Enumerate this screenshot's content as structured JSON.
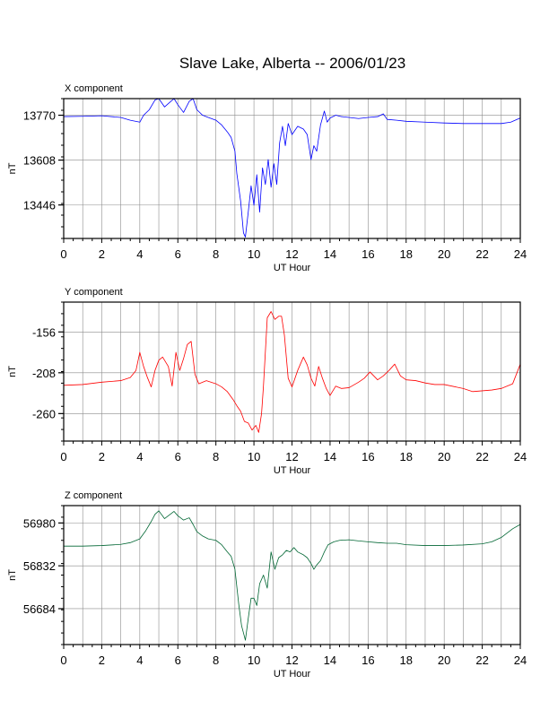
{
  "title": "Slave Lake, Alberta -- 2006/01/23",
  "chart_data": [
    {
      "type": "line",
      "title": "X component",
      "xlabel": "UT Hour",
      "ylabel": "nT",
      "xlim": [
        0,
        24
      ],
      "xticks": [
        0,
        2,
        4,
        6,
        8,
        10,
        12,
        14,
        16,
        18,
        20,
        22,
        24
      ],
      "ylim": [
        13325,
        13830
      ],
      "yticks": [
        13446,
        13608,
        13770
      ],
      "grid": true,
      "color": "#0000ff",
      "series": [
        {
          "x": [
            0,
            1,
            2,
            3,
            3.5,
            4,
            4.2,
            4.5,
            4.8,
            5,
            5.3,
            5.6,
            5.8,
            6,
            6.3,
            6.6,
            6.8,
            7,
            7.3,
            7.6,
            8,
            8.3,
            8.6,
            8.8,
            9,
            9.1,
            9.3,
            9.45,
            9.55,
            9.7,
            9.85,
            10,
            10.15,
            10.3,
            10.45,
            10.6,
            10.75,
            10.9,
            11.05,
            11.2,
            11.35,
            11.5,
            11.65,
            11.8,
            12,
            12.3,
            12.6,
            12.8,
            13,
            13.15,
            13.3,
            13.5,
            13.7,
            13.85,
            14,
            14.3,
            14.6,
            15,
            15.5,
            16,
            16.5,
            16.8,
            17,
            17.5,
            18,
            19,
            20,
            21,
            22,
            23,
            23.5,
            24
          ],
          "y": [
            13765,
            13766,
            13768,
            13762,
            13752,
            13745,
            13770,
            13790,
            13825,
            13830,
            13800,
            13818,
            13830,
            13808,
            13780,
            13820,
            13830,
            13790,
            13770,
            13762,
            13752,
            13735,
            13710,
            13690,
            13640,
            13560,
            13460,
            13345,
            13330,
            13420,
            13515,
            13445,
            13555,
            13420,
            13580,
            13520,
            13610,
            13510,
            13595,
            13520,
            13670,
            13730,
            13660,
            13740,
            13700,
            13730,
            13720,
            13700,
            13610,
            13660,
            13640,
            13735,
            13785,
            13745,
            13760,
            13770,
            13765,
            13762,
            13758,
            13762,
            13765,
            13775,
            13755,
            13752,
            13748,
            13745,
            13742,
            13740,
            13740,
            13740,
            13745,
            13760
          ]
        }
      ]
    },
    {
      "type": "line",
      "title": "Y component",
      "xlabel": "UT Hour",
      "ylabel": "nT",
      "xlim": [
        0,
        24
      ],
      "xticks": [
        0,
        2,
        4,
        6,
        8,
        10,
        12,
        14,
        16,
        18,
        20,
        22,
        24
      ],
      "ylim": [
        -295,
        -118
      ],
      "yticks": [
        -156,
        -208,
        -260
      ],
      "grid": true,
      "color": "#ff0000",
      "series": [
        {
          "x": [
            0,
            1,
            2,
            3,
            3.5,
            3.8,
            4,
            4.2,
            4.4,
            4.6,
            4.8,
            5,
            5.2,
            5.5,
            5.7,
            5.9,
            6.1,
            6.3,
            6.5,
            6.7,
            6.9,
            7.1,
            7.5,
            8,
            8.3,
            8.6,
            8.9,
            9.1,
            9.3,
            9.5,
            9.7,
            9.9,
            10.1,
            10.25,
            10.4,
            10.5,
            10.7,
            10.9,
            11.1,
            11.3,
            11.45,
            11.6,
            11.8,
            12,
            12.3,
            12.6,
            12.8,
            13,
            13.2,
            13.4,
            13.6,
            13.8,
            14,
            14.3,
            14.6,
            15,
            15.5,
            15.8,
            16.1,
            16.5,
            16.8,
            17.1,
            17.4,
            17.7,
            18,
            18.5,
            19,
            19.5,
            20,
            21,
            21.5,
            22,
            22.5,
            23,
            23.3,
            23.6,
            24
          ],
          "y": [
            -224,
            -223,
            -220,
            -218,
            -214,
            -205,
            -182,
            -200,
            -214,
            -226,
            -205,
            -192,
            -188,
            -200,
            -225,
            -182,
            -205,
            -190,
            -172,
            -168,
            -210,
            -222,
            -218,
            -222,
            -226,
            -232,
            -242,
            -250,
            -257,
            -270,
            -272,
            -281,
            -275,
            -284,
            -260,
            -225,
            -138,
            -130,
            -140,
            -136,
            -136,
            -160,
            -215,
            -226,
            -205,
            -188,
            -198,
            -215,
            -225,
            -200,
            -215,
            -228,
            -237,
            -225,
            -228,
            -227,
            -220,
            -215,
            -207,
            -217,
            -212,
            -205,
            -197,
            -212,
            -217,
            -218,
            -221,
            -223,
            -223,
            -228,
            -232,
            -231,
            -230,
            -228,
            -225,
            -222,
            -197
          ]
        }
      ]
    },
    {
      "type": "line",
      "title": "Z component",
      "xlabel": "UT Hour",
      "ylabel": "nT",
      "xlim": [
        0,
        24
      ],
      "xticks": [
        0,
        2,
        4,
        6,
        8,
        10,
        12,
        14,
        16,
        18,
        20,
        22,
        24
      ],
      "ylim": [
        56560,
        57040
      ],
      "yticks": [
        56684,
        56832,
        56980
      ],
      "grid": true,
      "color": "#006633",
      "series": [
        {
          "x": [
            0,
            1,
            2,
            3,
            3.5,
            4,
            4.3,
            4.6,
            4.8,
            5,
            5.3,
            5.6,
            5.8,
            6,
            6.3,
            6.6,
            6.8,
            7,
            7.3,
            7.6,
            8,
            8.3,
            8.6,
            8.8,
            9,
            9.1,
            9.2,
            9.35,
            9.45,
            9.55,
            9.7,
            9.85,
            10,
            10.15,
            10.3,
            10.5,
            10.7,
            10.9,
            11.1,
            11.3,
            11.5,
            11.7,
            11.9,
            12.1,
            12.3,
            12.6,
            12.8,
            13,
            13.15,
            13.3,
            13.5,
            13.7,
            13.9,
            14.2,
            14.5,
            15,
            15.5,
            16,
            16.5,
            17,
            17.5,
            18,
            19,
            20,
            21,
            22,
            22.5,
            23,
            23.3,
            23.6,
            24
          ],
          "y": [
            56900,
            56900,
            56902,
            56906,
            56912,
            56925,
            56952,
            56985,
            57010,
            57022,
            56995,
            57010,
            57020,
            57005,
            56990,
            56998,
            56975,
            56950,
            56935,
            56925,
            56920,
            56905,
            56880,
            56865,
            56820,
            56760,
            56700,
            56625,
            56600,
            56575,
            56650,
            56720,
            56720,
            56695,
            56770,
            56800,
            56755,
            56880,
            56820,
            56860,
            56870,
            56885,
            56880,
            56895,
            56880,
            56870,
            56860,
            56840,
            56820,
            56835,
            56850,
            56880,
            56905,
            56915,
            56920,
            56922,
            56918,
            56915,
            56912,
            56910,
            56910,
            56905,
            56902,
            56902,
            56904,
            56908,
            56915,
            56930,
            56945,
            56960,
            56975
          ]
        }
      ]
    }
  ]
}
